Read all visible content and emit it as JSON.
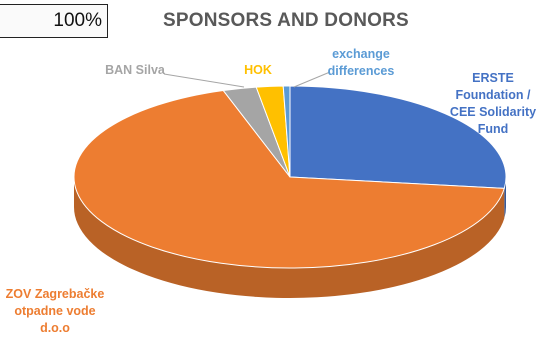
{
  "header": {
    "percent_cell": "100%",
    "title": "SPONSORS AND DONORS"
  },
  "chart_data": {
    "type": "pie",
    "title": "SPONSORS AND DONORS",
    "style": "3d",
    "slices": [
      {
        "label": [
          "ERSTE",
          "Foundation /",
          "CEE Solidarity",
          "Fund"
        ],
        "value": 27.0,
        "color": "#4472c4",
        "label_color": "#4472c4"
      },
      {
        "label": [
          "ZOV Zagrebačke",
          "otpadne vode",
          "d.o.o"
        ],
        "value": 68.0,
        "color": "#ed7d31",
        "label_color": "#ed7d31"
      },
      {
        "label": [
          "BAN Silva"
        ],
        "value": 2.5,
        "color": "#a5a5a5",
        "label_color": "#a5a5a5"
      },
      {
        "label": [
          "HOK"
        ],
        "value": 2.0,
        "color": "#ffc000",
        "label_color": "#ffc000"
      },
      {
        "label": [
          "exchange",
          "differences"
        ],
        "value": 0.5,
        "color": "#5b9bd5",
        "label_color": "#5b9bd5"
      }
    ]
  }
}
